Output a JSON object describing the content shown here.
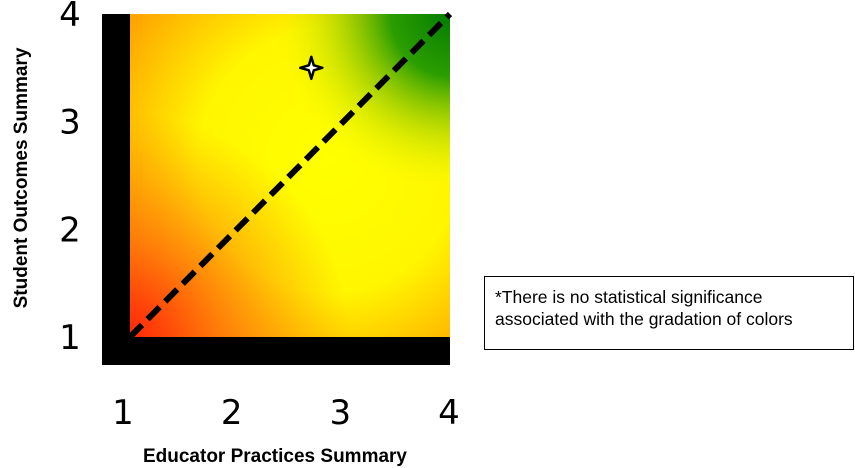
{
  "chart_data": {
    "type": "scatter",
    "xlabel": "Educator Practices Summary",
    "ylabel": "Student Outcomes Summary",
    "xlim": [
      1,
      4
    ],
    "ylim": [
      1,
      4
    ],
    "x_ticks": [
      "1",
      "2",
      "3",
      "4"
    ],
    "y_ticks": [
      "1",
      "2",
      "3",
      "4"
    ],
    "background": "color gradient: red (low) through orange and yellow to green (high)",
    "reference_line": {
      "style": "dashed",
      "color": "#000000",
      "from": [
        1,
        1
      ],
      "to": [
        4,
        4
      ]
    },
    "points": [
      {
        "x": 2.7,
        "y": 3.5,
        "marker": "four-point star"
      }
    ],
    "colors": {
      "low": "#ff2a10",
      "mid": "#ffa500",
      "yellow": "#ffff00",
      "high": "#008c00",
      "frame": "#000000"
    }
  },
  "note": {
    "lines": [
      "*There is no statistical significance",
      "associated with the gradation of colors"
    ]
  }
}
